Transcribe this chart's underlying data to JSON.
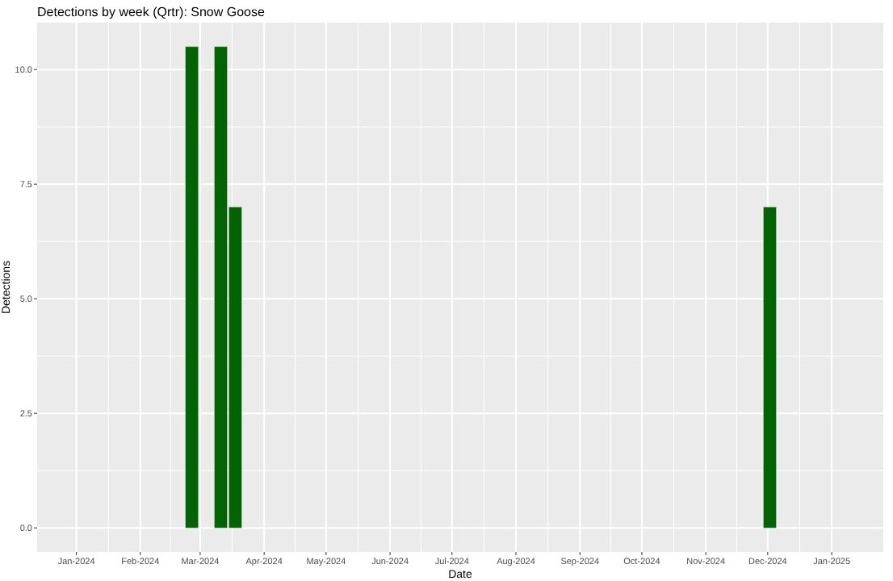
{
  "chart_data": {
    "type": "bar",
    "title": "Detections by week (Qrtr): Snow Goose",
    "xlabel": "Date",
    "ylabel": "Detections",
    "x": [
      "2024-02-26",
      "2024-03-11",
      "2024-03-18",
      "2024-12-02"
    ],
    "values": [
      10.5,
      10.5,
      7,
      7
    ],
    "color": "#006400",
    "xlim": [
      "2023-12-13",
      "2025-01-26"
    ],
    "xticks": [
      {
        "value": "2024-01-01",
        "label": "Jan-2024"
      },
      {
        "value": "2024-02-01",
        "label": "Feb-2024"
      },
      {
        "value": "2024-03-01",
        "label": "Mar-2024"
      },
      {
        "value": "2024-04-01",
        "label": "Apr-2024"
      },
      {
        "value": "2024-05-01",
        "label": "May-2024"
      },
      {
        "value": "2024-06-01",
        "label": "Jun-2024"
      },
      {
        "value": "2024-07-01",
        "label": "Jul-2024"
      },
      {
        "value": "2024-08-01",
        "label": "Aug-2024"
      },
      {
        "value": "2024-09-01",
        "label": "Sep-2024"
      },
      {
        "value": "2024-10-01",
        "label": "Oct-2024"
      },
      {
        "value": "2024-11-01",
        "label": "Nov-2024"
      },
      {
        "value": "2024-12-01",
        "label": "Dec-2024"
      },
      {
        "value": "2025-01-01",
        "label": "Jan-2025"
      }
    ],
    "ylim": [
      -0.525,
      11.025
    ],
    "yticks": [
      {
        "value": 0,
        "label": "0.0"
      },
      {
        "value": 2.5,
        "label": "2.5"
      },
      {
        "value": 5,
        "label": "5.0"
      },
      {
        "value": 7.5,
        "label": "7.5"
      },
      {
        "value": 10,
        "label": "10.0"
      }
    ],
    "grid": true
  }
}
